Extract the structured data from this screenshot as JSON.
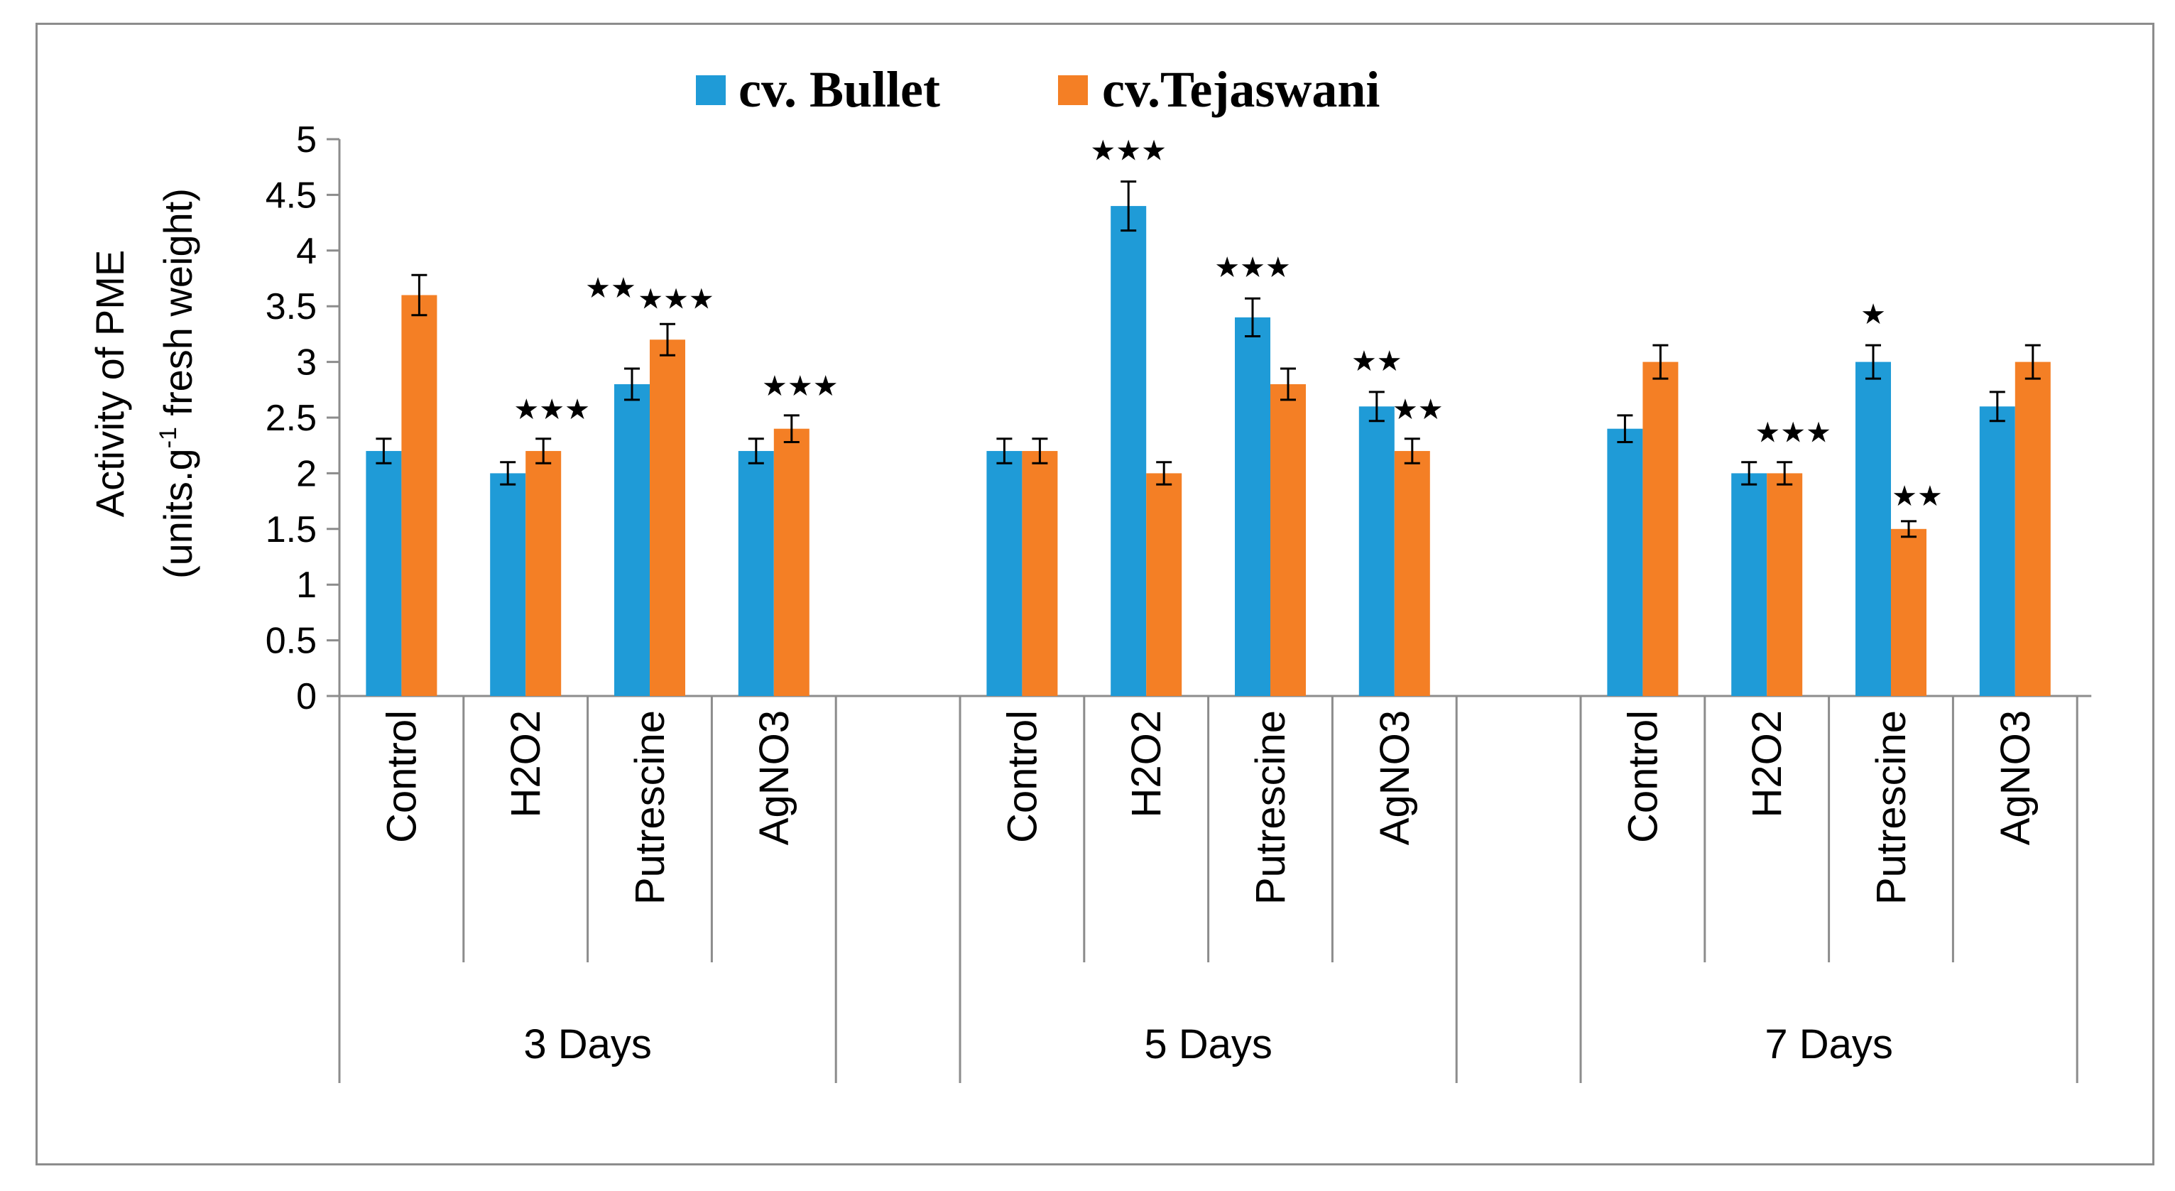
{
  "chart_data": {
    "type": "bar",
    "title": "",
    "ylabel_line1": "Activity of PME",
    "ylabel_line2_pre": "(units.g",
    "ylabel_line2_sup": "-1",
    "ylabel_line2_post": " fresh weight)",
    "xlabel": "",
    "ylim": [
      0,
      5
    ],
    "yticks": [
      0,
      0.5,
      1,
      1.5,
      2,
      2.5,
      3,
      3.5,
      4,
      4.5,
      5
    ],
    "ytick_labels": [
      "0",
      "0.5",
      "1",
      "1.5",
      "2",
      "2.5",
      "3",
      "3.5",
      "4",
      "4.5",
      "5"
    ],
    "grid": false,
    "legend_position": "top",
    "groups": [
      {
        "label": "3 Days",
        "categories": [
          "Control",
          "H2O2",
          "Putrescine",
          "AgNO3"
        ]
      },
      {
        "label": "5 Days",
        "categories": [
          "Control",
          "H2O2",
          "Putrescine",
          "AgNO3"
        ]
      },
      {
        "label": "7 Days",
        "categories": [
          "Control",
          "H2O2",
          "Putrescine",
          "AgNO3"
        ]
      }
    ],
    "series": [
      {
        "name": "cv. Bullet",
        "color": "#1f9bd7",
        "values": [
          2.2,
          2.0,
          2.8,
          2.2,
          2.2,
          4.4,
          3.4,
          2.6,
          2.4,
          2.0,
          3.0,
          2.6
        ],
        "errors": [
          0.11,
          0.1,
          0.14,
          0.11,
          0.11,
          0.22,
          0.17,
          0.13,
          0.12,
          0.1,
          0.15,
          0.13
        ],
        "significance": [
          "",
          "",
          "**",
          "",
          "",
          "***",
          "***",
          "**",
          "",
          "",
          "*",
          ""
        ]
      },
      {
        "name": "cv.Tejaswani",
        "color": "#f47f25",
        "values": [
          3.6,
          2.2,
          3.2,
          2.4,
          2.2,
          2.0,
          2.8,
          2.2,
          3.0,
          2.0,
          1.5,
          3.0
        ],
        "errors": [
          0.18,
          0.11,
          0.14,
          0.12,
          0.11,
          0.1,
          0.14,
          0.11,
          0.15,
          0.1,
          0.07,
          0.15
        ],
        "significance": [
          "",
          "***",
          "***",
          "***",
          "",
          "",
          "",
          "**",
          "",
          "***",
          "**",
          ""
        ]
      }
    ]
  }
}
